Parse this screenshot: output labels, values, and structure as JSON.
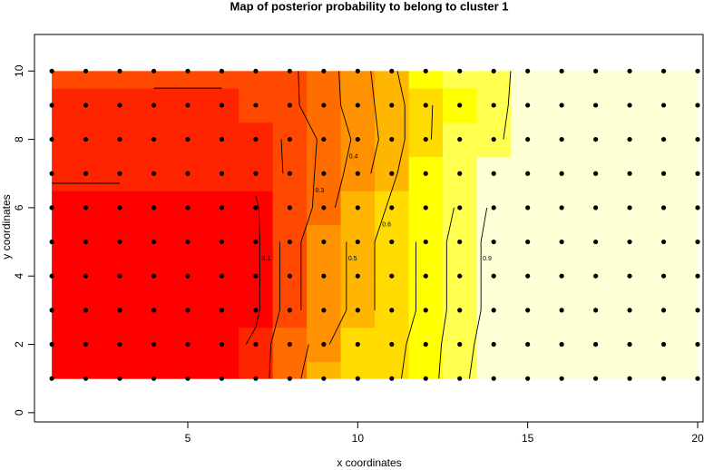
{
  "chart_data": {
    "type": "heatmap",
    "title": "Map of posterior probability to belong to cluster  1",
    "x_label": "x coordinates",
    "y_label": "y coordinates",
    "x": [
      1,
      2,
      3,
      4,
      5,
      6,
      7,
      8,
      9,
      10,
      11,
      12,
      13,
      14,
      15,
      16,
      17,
      18,
      19,
      20
    ],
    "y": [
      1,
      2,
      3,
      4,
      5,
      6,
      7,
      8,
      9,
      10
    ],
    "z": [
      [
        0.05,
        0.05,
        0.05,
        0.05,
        0.05,
        0.05,
        0.1,
        0.35,
        0.5,
        0.62,
        0.68,
        0.75,
        0.88,
        0.95,
        0.97,
        0.97,
        0.97,
        0.97,
        0.97,
        0.97
      ],
      [
        0.05,
        0.05,
        0.05,
        0.05,
        0.05,
        0.05,
        0.12,
        0.3,
        0.48,
        0.6,
        0.67,
        0.74,
        0.87,
        0.94,
        0.97,
        0.97,
        0.97,
        0.97,
        0.97,
        0.97
      ],
      [
        0.04,
        0.04,
        0.04,
        0.04,
        0.04,
        0.05,
        0.08,
        0.25,
        0.4,
        0.55,
        0.65,
        0.72,
        0.85,
        0.93,
        0.97,
        0.97,
        0.97,
        0.97,
        0.97,
        0.97
      ],
      [
        0.04,
        0.04,
        0.04,
        0.04,
        0.04,
        0.05,
        0.08,
        0.25,
        0.4,
        0.55,
        0.65,
        0.72,
        0.85,
        0.93,
        0.97,
        0.97,
        0.97,
        0.97,
        0.97,
        0.97
      ],
      [
        0.04,
        0.04,
        0.04,
        0.04,
        0.04,
        0.05,
        0.08,
        0.25,
        0.4,
        0.55,
        0.65,
        0.72,
        0.85,
        0.93,
        0.97,
        0.97,
        0.97,
        0.97,
        0.97,
        0.97
      ],
      [
        0.05,
        0.05,
        0.05,
        0.05,
        0.05,
        0.06,
        0.09,
        0.2,
        0.35,
        0.5,
        0.62,
        0.7,
        0.82,
        0.92,
        0.96,
        0.97,
        0.97,
        0.97,
        0.97,
        0.97
      ],
      [
        0.12,
        0.12,
        0.12,
        0.1,
        0.1,
        0.1,
        0.12,
        0.22,
        0.33,
        0.45,
        0.58,
        0.7,
        0.8,
        0.9,
        0.96,
        0.96,
        0.96,
        0.96,
        0.96,
        0.96
      ],
      [
        0.15,
        0.15,
        0.15,
        0.15,
        0.15,
        0.12,
        0.14,
        0.22,
        0.32,
        0.42,
        0.55,
        0.68,
        0.8,
        0.88,
        0.95,
        0.96,
        0.96,
        0.96,
        0.96,
        0.96
      ],
      [
        0.18,
        0.18,
        0.18,
        0.18,
        0.18,
        0.18,
        0.2,
        0.28,
        0.35,
        0.45,
        0.55,
        0.68,
        0.78,
        0.87,
        0.94,
        0.96,
        0.96,
        0.96,
        0.96,
        0.96
      ],
      [
        0.2,
        0.2,
        0.2,
        0.22,
        0.22,
        0.22,
        0.22,
        0.28,
        0.36,
        0.45,
        0.58,
        0.7,
        0.8,
        0.87,
        0.93,
        0.96,
        0.96,
        0.96,
        0.96,
        0.96
      ]
    ],
    "levels": [
      0,
      0.1,
      0.2,
      0.3,
      0.4,
      0.5,
      0.6,
      0.7,
      0.8,
      0.9,
      1
    ],
    "colors": [
      "#ff0000",
      "#ff2400",
      "#ff4900",
      "#ff6d00",
      "#ff9200",
      "#ffb600",
      "#ffdb00",
      "#ffff00",
      "#ffff50",
      "#ffffd5"
    ],
    "contour_levels": [
      0.1,
      0.2,
      0.3,
      0.4,
      0.5,
      0.6,
      0.7,
      0.8,
      0.9
    ],
    "xlim": [
      0.49,
      20.16
    ],
    "ylim": [
      -0.27,
      11.07
    ],
    "xticks": [
      5,
      10,
      15,
      20
    ],
    "yticks": [
      0,
      2,
      4,
      6,
      8,
      10
    ]
  }
}
